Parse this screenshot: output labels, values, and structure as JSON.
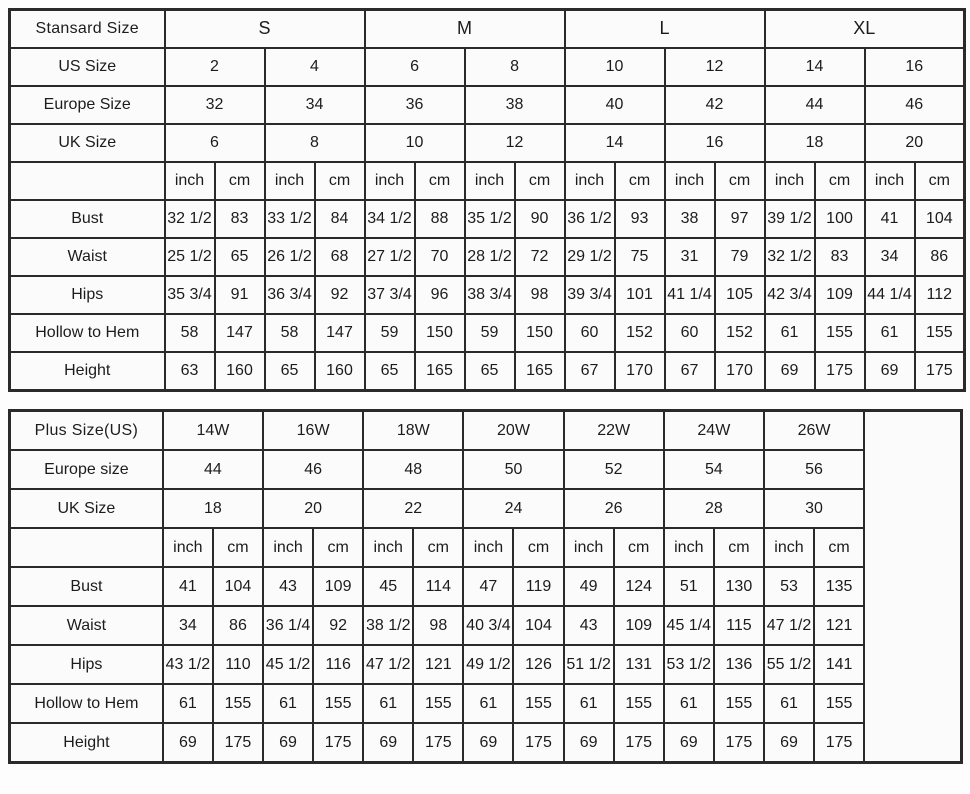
{
  "page": {
    "description": "Garment size chart with a standard size table and a plus size table"
  },
  "colors": {
    "border": "#2a2a2a",
    "cell_background": "#fbfbfb",
    "page_background": "#fdfdfd",
    "text": "#1c1c1c"
  },
  "chart_data": [
    {
      "type": "table",
      "name": "standard-size-table",
      "corner_label": "Stansard Size",
      "group_headers": [
        "S",
        "M",
        "L",
        "XL"
      ],
      "group_headers_bold": true,
      "size_rows": [
        {
          "label": "US Size",
          "bold": true,
          "values": [
            "2",
            "4",
            "6",
            "8",
            "10",
            "12",
            "14",
            "16"
          ]
        },
        {
          "label": "Europe Size",
          "bold": false,
          "values": [
            "32",
            "34",
            "36",
            "38",
            "40",
            "42",
            "44",
            "46"
          ]
        },
        {
          "label": "UK Size",
          "bold": false,
          "values": [
            "6",
            "8",
            "10",
            "12",
            "14",
            "16",
            "18",
            "20"
          ]
        }
      ],
      "units": [
        "inch",
        "cm"
      ],
      "measurement_rows": [
        {
          "label": "Bust",
          "values": [
            "32 1/2",
            "83",
            "33 1/2",
            "84",
            "34 1/2",
            "88",
            "35 1/2",
            "90",
            "36 1/2",
            "93",
            "38",
            "97",
            "39 1/2",
            "100",
            "41",
            "104"
          ]
        },
        {
          "label": "Waist",
          "values": [
            "25 1/2",
            "65",
            "26 1/2",
            "68",
            "27 1/2",
            "70",
            "28 1/2",
            "72",
            "29 1/2",
            "75",
            "31",
            "79",
            "32 1/2",
            "83",
            "34",
            "86"
          ]
        },
        {
          "label": "Hips",
          "values": [
            "35 3/4",
            "91",
            "36 3/4",
            "92",
            "37 3/4",
            "96",
            "38 3/4",
            "98",
            "39 3/4",
            "101",
            "41 1/4",
            "105",
            "42 3/4",
            "109",
            "44 1/4",
            "112"
          ]
        },
        {
          "label": "Hollow to Hem",
          "values": [
            "58",
            "147",
            "58",
            "147",
            "59",
            "150",
            "59",
            "150",
            "60",
            "152",
            "60",
            "152",
            "61",
            "155",
            "61",
            "155"
          ]
        },
        {
          "label": "Height",
          "values": [
            "63",
            "160",
            "65",
            "160",
            "65",
            "165",
            "65",
            "165",
            "67",
            "170",
            "67",
            "170",
            "69",
            "175",
            "69",
            "175"
          ]
        }
      ],
      "trailing_empty_column": false
    },
    {
      "type": "table",
      "name": "plus-size-table",
      "corner_label": "Plus Size(US)",
      "group_headers": [
        "14W",
        "16W",
        "18W",
        "20W",
        "22W",
        "24W",
        "26W"
      ],
      "group_headers_bold": false,
      "size_rows": [
        {
          "label": "Europe size",
          "bold": false,
          "values": [
            "44",
            "46",
            "48",
            "50",
            "52",
            "54",
            "56"
          ]
        },
        {
          "label": "UK Size",
          "bold": false,
          "values": [
            "18",
            "20",
            "22",
            "24",
            "26",
            "28",
            "30"
          ]
        }
      ],
      "units": [
        "inch",
        "cm"
      ],
      "measurement_rows": [
        {
          "label": "Bust",
          "values": [
            "41",
            "104",
            "43",
            "109",
            "45",
            "114",
            "47",
            "119",
            "49",
            "124",
            "51",
            "130",
            "53",
            "135"
          ]
        },
        {
          "label": "Waist",
          "values": [
            "34",
            "86",
            "36 1/4",
            "92",
            "38 1/2",
            "98",
            "40 3/4",
            "104",
            "43",
            "109",
            "45 1/4",
            "115",
            "47 1/2",
            "121"
          ]
        },
        {
          "label": "Hips",
          "values": [
            "43 1/2",
            "110",
            "45 1/2",
            "116",
            "47 1/2",
            "121",
            "49 1/2",
            "126",
            "51 1/2",
            "131",
            "53 1/2",
            "136",
            "55 1/2",
            "141"
          ]
        },
        {
          "label": "Hollow to Hem",
          "values": [
            "61",
            "155",
            "61",
            "155",
            "61",
            "155",
            "61",
            "155",
            "61",
            "155",
            "61",
            "155",
            "61",
            "155"
          ]
        },
        {
          "label": "Height",
          "values": [
            "69",
            "175",
            "69",
            "175",
            "69",
            "175",
            "69",
            "175",
            "69",
            "175",
            "69",
            "175",
            "69",
            "175"
          ]
        }
      ],
      "trailing_empty_column": true
    }
  ]
}
